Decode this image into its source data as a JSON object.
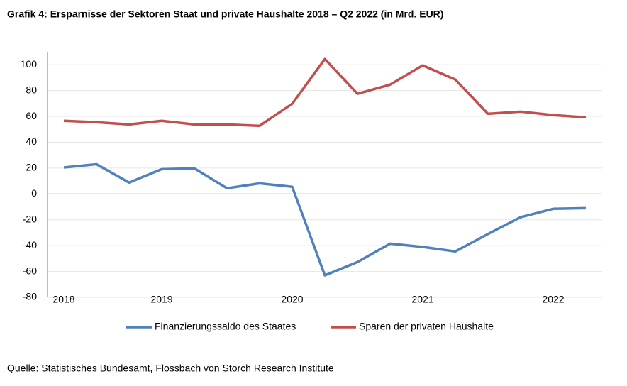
{
  "chart_data": {
    "type": "line",
    "title": "Grafik 4: Ersparnisse der Sektoren Staat und private Haushalte 2018 – Q2 2022 (in Mrd. EUR)",
    "source": "Quelle: Statistisches Bundesamt, Flossbach von Storch Research Institute",
    "categories": [
      "2018",
      null,
      null,
      "2019",
      null,
      null,
      null,
      "2020",
      null,
      null,
      null,
      "2021",
      null,
      null,
      null,
      "2022",
      null
    ],
    "series": [
      {
        "name": "Finanzierungssaldo des Staates",
        "color": "#4f81bd",
        "values": [
          20.5,
          23,
          8.8,
          19.2,
          19.8,
          4.4,
          8.2,
          5.5,
          -63,
          -52.7,
          -38.5,
          -41,
          -44.5,
          -31,
          -18,
          -11.5,
          -11
        ]
      },
      {
        "name": "Sparen der privaten Haushalte",
        "color": "#c0504d",
        "values": [
          56.6,
          55.5,
          53.8,
          56.6,
          53.8,
          53.8,
          52.7,
          69.8,
          104.4,
          77.5,
          84.6,
          99.5,
          88.5,
          62,
          63.7,
          61,
          59.3
        ]
      }
    ],
    "ylim": [
      -80,
      110
    ],
    "yticks": [
      -80,
      -60,
      -40,
      -20,
      0,
      20,
      40,
      60,
      80,
      100
    ],
    "grid": true
  }
}
